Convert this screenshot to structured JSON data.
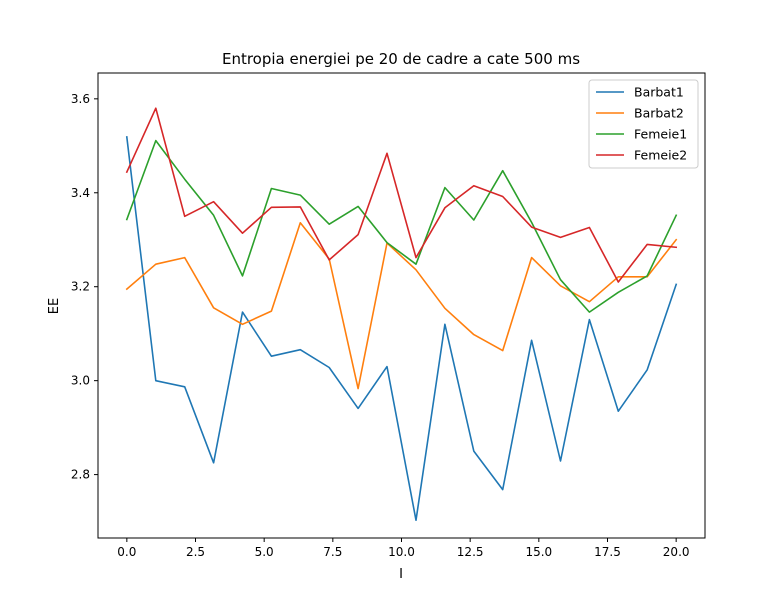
{
  "chart_data": {
    "type": "line",
    "title": "Entropia energiei pe 20 de cadre a cate 500 ms",
    "xlabel": "I",
    "ylabel": "EE",
    "xlim": [
      -1.05,
      21.05
    ],
    "ylim": [
      2.665,
      3.655
    ],
    "xticks": [
      0.0,
      2.5,
      5.0,
      7.5,
      10.0,
      12.5,
      15.0,
      17.5,
      20.0
    ],
    "xtick_labels": [
      "0.0",
      "2.5",
      "5.0",
      "7.5",
      "10.0",
      "12.5",
      "15.0",
      "17.5",
      "20.0"
    ],
    "yticks": [
      2.8,
      3.0,
      3.2,
      3.4,
      3.6
    ],
    "ytick_labels": [
      "2.8",
      "3.0",
      "3.2",
      "3.4",
      "3.6"
    ],
    "grid": false,
    "legend_position": "top-right",
    "x": [
      0,
      1.0526,
      2.1053,
      3.1579,
      4.2105,
      5.2632,
      6.3158,
      7.3684,
      8.4211,
      9.4737,
      10.5263,
      11.5789,
      12.6316,
      13.6842,
      14.7368,
      15.7895,
      16.8421,
      17.8947,
      18.9474,
      20.0
    ],
    "series": [
      {
        "name": "Barbat1",
        "color": "#1f77b4",
        "values": [
          3.519,
          3.0,
          2.987,
          2.825,
          3.146,
          3.052,
          3.066,
          3.028,
          2.941,
          3.03,
          2.703,
          3.12,
          2.85,
          2.768,
          3.086,
          2.829,
          3.13,
          2.935,
          3.023,
          3.205
        ]
      },
      {
        "name": "Barbat2",
        "color": "#ff7f0e",
        "values": [
          3.195,
          3.248,
          3.262,
          3.155,
          3.12,
          3.148,
          3.336,
          3.259,
          2.983,
          3.293,
          3.236,
          3.154,
          3.098,
          3.064,
          3.262,
          3.202,
          3.168,
          3.221,
          3.221,
          3.3
        ]
      },
      {
        "name": "Femeie1",
        "color": "#2ca02c",
        "values": [
          3.343,
          3.511,
          3.429,
          3.352,
          3.223,
          3.409,
          3.395,
          3.333,
          3.371,
          3.294,
          3.248,
          3.411,
          3.342,
          3.447,
          3.337,
          3.215,
          3.146,
          3.188,
          3.223,
          3.352
        ]
      },
      {
        "name": "Femeie2",
        "color": "#d62728",
        "values": [
          3.444,
          3.58,
          3.35,
          3.381,
          3.314,
          3.369,
          3.37,
          3.257,
          3.311,
          3.484,
          3.262,
          3.368,
          3.415,
          3.392,
          3.327,
          3.305,
          3.326,
          3.21,
          3.29,
          3.284
        ]
      }
    ]
  }
}
